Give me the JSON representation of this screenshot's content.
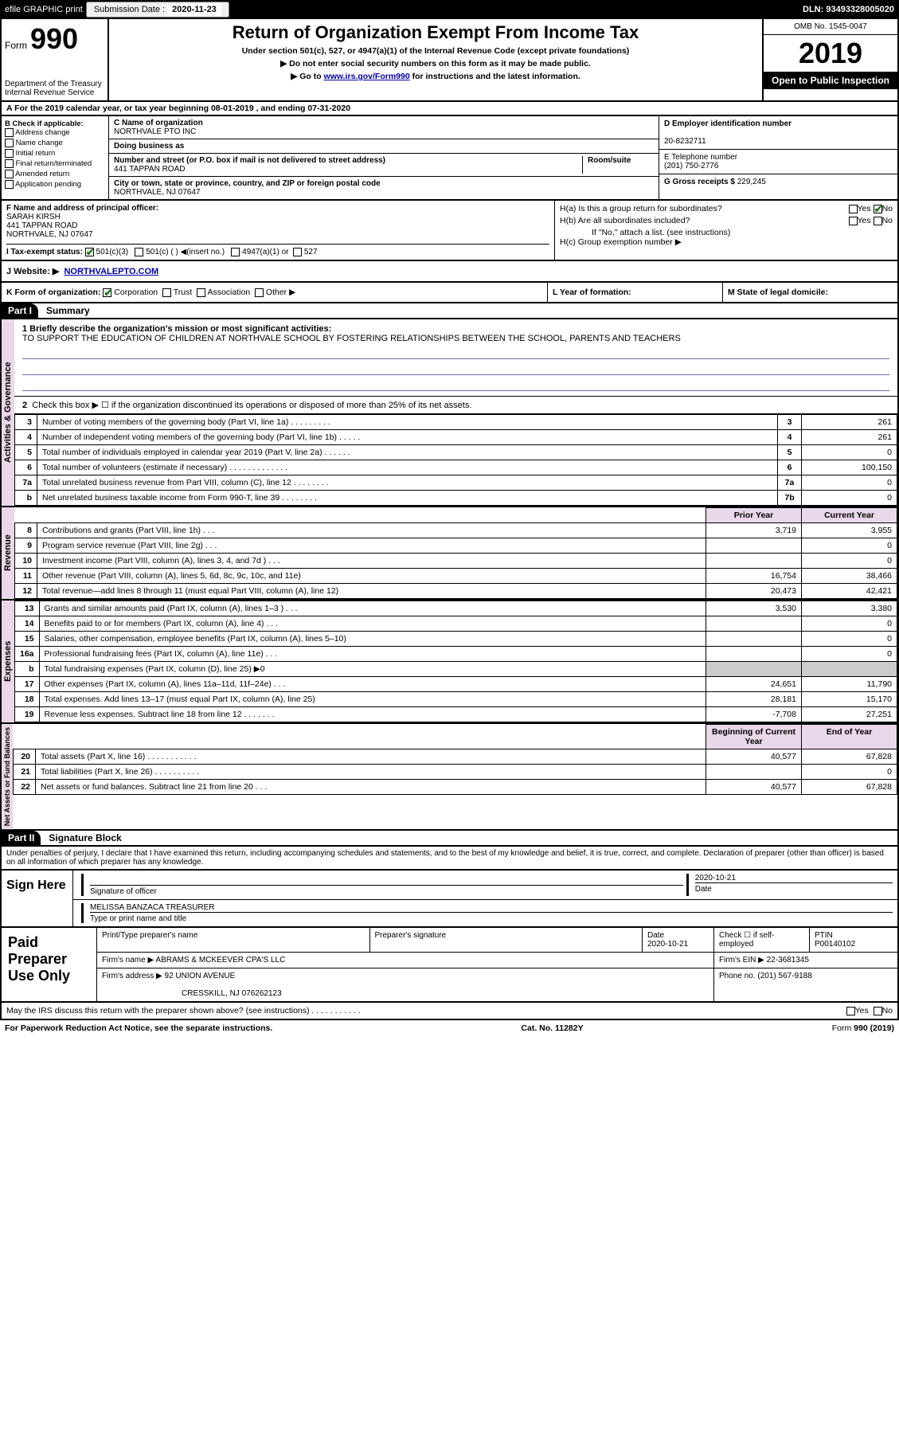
{
  "header": {
    "efile": "efile GRAPHIC print",
    "sub_label": "Submission Date :",
    "sub_date": "2020-11-23",
    "dln": "DLN: 93493328005020"
  },
  "top": {
    "form_word": "Form",
    "form_num": "990",
    "dept1": "Department of the Treasury",
    "dept2": "Internal Revenue Service",
    "title": "Return of Organization Exempt From Income Tax",
    "sub1": "Under section 501(c), 527, or 4947(a)(1) of the Internal Revenue Code (except private foundations)",
    "sub2": "▶ Do not enter social security numbers on this form as it may be made public.",
    "sub3_pre": "▶ Go to ",
    "sub3_link": "www.irs.gov/Form990",
    "sub3_post": " for instructions and the latest information.",
    "omb": "OMB No. 1545-0047",
    "year": "2019",
    "open": "Open to Public Inspection"
  },
  "lineA": "A For the 2019 calendar year, or tax year beginning 08-01-2019     , and ending 07-31-2020",
  "b": {
    "label": "B Check if applicable:",
    "addr": "Address change",
    "name": "Name change",
    "init": "Initial return",
    "final": "Final return/terminated",
    "amend": "Amended return",
    "app": "Application pending"
  },
  "c": {
    "name_label": "C Name of organization",
    "name": "NORTHVALE PTO INC",
    "dba_label": "Doing business as",
    "addr_label": "Number and street (or P.O. box if mail is not delivered to street address)",
    "room": "Room/suite",
    "addr": "441 TAPPAN ROAD",
    "city_label": "City or town, state or province, country, and ZIP or foreign postal code",
    "city": "NORTHVALE, NJ  07647"
  },
  "d": {
    "ein_label": "D Employer identification number",
    "ein": "20-8232711",
    "tel_label": "E Telephone number",
    "tel": "(201) 750-2776",
    "gross_label": "G Gross receipts $",
    "gross": "229,245"
  },
  "f": {
    "label": "F  Name and address of principal officer:",
    "name": "SARAH KIRSH",
    "addr1": "441 TAPPAN ROAD",
    "addr2": "NORTHVALE, NJ  07647"
  },
  "h": {
    "a": "H(a)  Is this a group return for subordinates?",
    "b": "H(b)  Are all subordinates included?",
    "b_note": "If \"No,\" attach a list. (see instructions)",
    "c": "H(c)  Group exemption number ▶",
    "yes": "Yes",
    "no": "No"
  },
  "i": {
    "label": "I   Tax-exempt status:",
    "c3": "501(c)(3)",
    "c_other": "501(c) (  ) ◀(insert no.)",
    "a1": "4947(a)(1) or",
    "o527": "527"
  },
  "j": {
    "label": "J   Website: ▶",
    "value": "NORTHVALEPTO.COM"
  },
  "k": {
    "label": "K Form of organization:",
    "corp": "Corporation",
    "trust": "Trust",
    "assoc": "Association",
    "other": "Other ▶"
  },
  "l": {
    "label": "L Year of formation:"
  },
  "m": {
    "label": "M State of legal domicile:"
  },
  "parts": {
    "p1": "Part I",
    "p1t": "Summary",
    "p2": "Part II",
    "p2t": "Signature Block"
  },
  "side": {
    "ag": "Activities & Governance",
    "rev": "Revenue",
    "exp": "Expenses",
    "na": "Net Assets or Fund Balances"
  },
  "p1": {
    "l1_label": "1  Briefly describe the organization's mission or most significant activities:",
    "l1_text": "TO SUPPORT THE EDUCATION OF CHILDREN AT NORTHVALE SCHOOL BY FOSTERING RELATIONSHIPS BETWEEN THE SCHOOL, PARENTS AND TEACHERS",
    "l2": "Check this box ▶ ☐  if the organization discontinued its operations or disposed of more than 25% of its net assets.",
    "rows_ag": [
      {
        "n": "3",
        "t": "Number of voting members of the governing body (Part VI, line 1a)   .    .    .    .    .    .    .    .    .",
        "b": "3",
        "v": "261"
      },
      {
        "n": "4",
        "t": "Number of independent voting members of the governing body (Part VI, line 1b)   .    .    .    .    .",
        "b": "4",
        "v": "261"
      },
      {
        "n": "5",
        "t": "Total number of individuals employed in calendar year 2019 (Part V, line 2a)   .    .    .    .    .    .",
        "b": "5",
        "v": "0"
      },
      {
        "n": "6",
        "t": "Total number of volunteers (estimate if necessary)    .    .    .    .    .    .    .    .    .    .    .    .    .",
        "b": "6",
        "v": "100,150"
      },
      {
        "n": "7a",
        "t": "Total unrelated business revenue from Part VIII, column (C), line 12   .    .    .    .    .    .    .    .",
        "b": "7a",
        "v": "0"
      },
      {
        "n": "b",
        "t": "Net unrelated business taxable income from Form 990-T, line 39    .    .    .    .    .    .    .    .",
        "b": "7b",
        "v": "0"
      }
    ],
    "prior": "Prior Year",
    "curr": "Current Year",
    "rows_rev": [
      {
        "n": "8",
        "t": "Contributions and grants (Part VIII, line 1h)    .    .    .",
        "p": "3,719",
        "c": "3,955"
      },
      {
        "n": "9",
        "t": "Program service revenue (Part VIII, line 2g)    .    .    .",
        "p": "",
        "c": "0"
      },
      {
        "n": "10",
        "t": "Investment income (Part VIII, column (A), lines 3, 4, and 7d )    .    .    .",
        "p": "",
        "c": "0"
      },
      {
        "n": "11",
        "t": "Other revenue (Part VIII, column (A), lines 5, 6d, 8c, 9c, 10c, and 11e)",
        "p": "16,754",
        "c": "38,466"
      },
      {
        "n": "12",
        "t": "Total revenue—add lines 8 through 11 (must equal Part VIII, column (A), line 12)",
        "p": "20,473",
        "c": "42,421"
      }
    ],
    "rows_exp": [
      {
        "n": "13",
        "t": "Grants and similar amounts paid (Part IX, column (A), lines 1–3 )    .    .    .",
        "p": "3,530",
        "c": "3,380"
      },
      {
        "n": "14",
        "t": "Benefits paid to or for members (Part IX, column (A), line 4)    .    .    .",
        "p": "",
        "c": "0"
      },
      {
        "n": "15",
        "t": "Salaries, other compensation, employee benefits (Part IX, column (A), lines 5–10)",
        "p": "",
        "c": "0"
      },
      {
        "n": "16a",
        "t": "Professional fundraising fees (Part IX, column (A), line 11e)    .    .    .",
        "p": "",
        "c": "0"
      },
      {
        "n": "b",
        "t": "Total fundraising expenses (Part IX, column (D), line 25) ▶0",
        "p": "GREY",
        "c": "GREY"
      },
      {
        "n": "17",
        "t": "Other expenses (Part IX, column (A), lines 11a–11d, 11f–24e)    .    .    .",
        "p": "24,651",
        "c": "11,790"
      },
      {
        "n": "18",
        "t": "Total expenses. Add lines 13–17 (must equal Part IX, column (A), line 25)",
        "p": "28,181",
        "c": "15,170"
      },
      {
        "n": "19",
        "t": "Revenue less expenses. Subtract line 18 from line 12    .    .    .    .    .    .    .",
        "p": "-7,708",
        "c": "27,251"
      }
    ],
    "begin": "Beginning of Current Year",
    "end": "End of Year",
    "rows_na": [
      {
        "n": "20",
        "t": "Total assets (Part X, line 16)  .    .    .    .    .    .    .    .    .    .    .",
        "p": "40,577",
        "c": "67,828"
      },
      {
        "n": "21",
        "t": "Total liabilities (Part X, line 26)  .    .    .    .    .    .    .    .    .    .",
        "p": "",
        "c": "0"
      },
      {
        "n": "22",
        "t": "Net assets or fund balances. Subtract line 21 from line 20    .    .    .",
        "p": "40,577",
        "c": "67,828"
      }
    ]
  },
  "p2": {
    "perjury": "Under penalties of perjury, I declare that I have examined this return, including accompanying schedules and statements, and to the best of my knowledge and belief, it is true, correct, and complete. Declaration of preparer (other than officer) is based on all information of which preparer has any knowledge.",
    "sign_here": "Sign Here",
    "sig_officer": "Signature of officer",
    "date": "Date",
    "date_val": "2020-10-21",
    "typed": "MELISSA BANZACA  TREASURER",
    "typed_label": "Type or print name and title",
    "paid": "Paid Preparer Use Only",
    "prep_name_label": "Print/Type preparer's name",
    "prep_sig_label": "Preparer's signature",
    "prep_date": "2020-10-21",
    "check_self": "Check ☐ if self-employed",
    "ptin_label": "PTIN",
    "ptin": "P00140102",
    "firm_name_label": "Firm's name     ▶",
    "firm_name": "ABRAMS & MCKEEVER CPA'S LLC",
    "firm_ein_label": "Firm's EIN ▶",
    "firm_ein": "22-3681345",
    "firm_addr_label": "Firm's address ▶",
    "firm_addr1": "92 UNION AVENUE",
    "firm_addr2": "CRESSKILL, NJ  076262123",
    "phone_label": "Phone no.",
    "phone": "(201) 567-9188",
    "discuss": "May the IRS discuss this return with the preparer shown above? (see instructions)    .    .    .    .    .    .    .    .    .    .    .",
    "paperwork": "For Paperwork Reduction Act Notice, see the separate instructions.",
    "cat": "Cat. No. 11282Y",
    "form": "Form 990 (2019)"
  }
}
